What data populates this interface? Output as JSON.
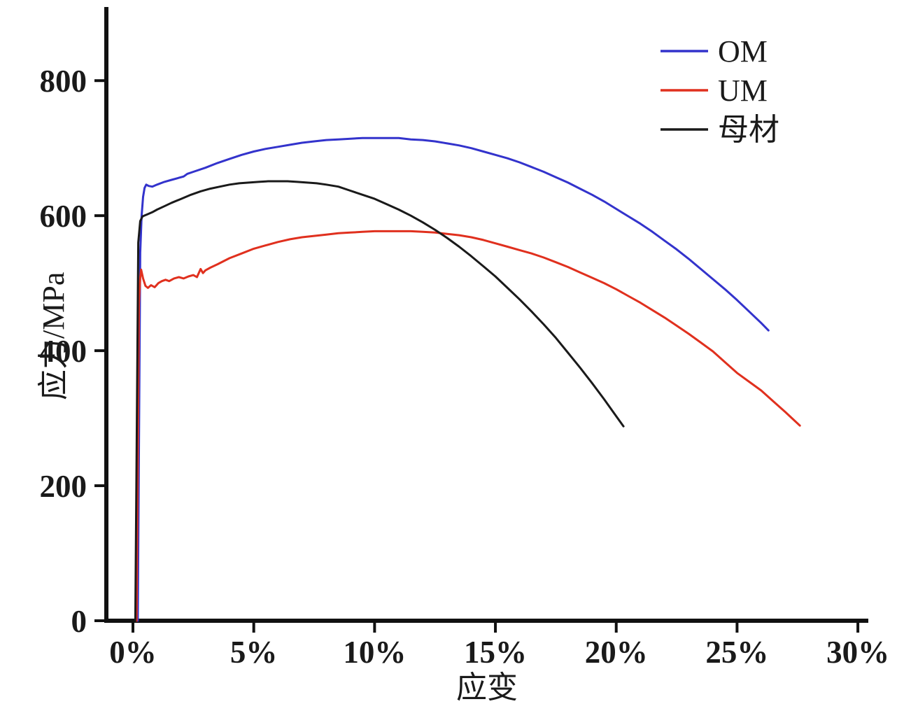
{
  "chart_data": {
    "type": "line",
    "title": "",
    "xlabel": "应变",
    "ylabel": "应力/MPa",
    "x_unit": "percent_strain",
    "y_unit": "MPa",
    "xlim": [
      -1.1,
      30.2
    ],
    "ylim": [
      0,
      907
    ],
    "grid": false,
    "legend_position": "top-right",
    "axis_color": "#111111",
    "x_ticks": [
      {
        "value": 0,
        "label": "0%"
      },
      {
        "value": 5,
        "label": "5%"
      },
      {
        "value": 10,
        "label": "10%"
      },
      {
        "value": 15,
        "label": "15%"
      },
      {
        "value": 20,
        "label": "20%"
      },
      {
        "value": 25,
        "label": "25%"
      },
      {
        "value": 30,
        "label": "30%"
      }
    ],
    "y_ticks": [
      {
        "value": 0,
        "label": "0"
      },
      {
        "value": 200,
        "label": "200"
      },
      {
        "value": 400,
        "label": "400"
      },
      {
        "value": 600,
        "label": "600"
      },
      {
        "value": 800,
        "label": "800"
      }
    ],
    "series": [
      {
        "name": "OM",
        "color": "#3333cc",
        "points": [
          [
            0.2,
            0
          ],
          [
            0.3,
            545
          ],
          [
            0.36,
            600
          ],
          [
            0.42,
            628
          ],
          [
            0.48,
            641
          ],
          [
            0.55,
            646
          ],
          [
            0.65,
            644
          ],
          [
            0.8,
            643
          ],
          [
            1.0,
            646
          ],
          [
            1.3,
            650
          ],
          [
            1.6,
            653
          ],
          [
            1.9,
            656
          ],
          [
            2.1,
            658
          ],
          [
            2.25,
            662
          ],
          [
            2.5,
            665
          ],
          [
            3.0,
            671
          ],
          [
            3.5,
            678
          ],
          [
            4.0,
            684
          ],
          [
            4.5,
            690
          ],
          [
            5.0,
            695
          ],
          [
            5.5,
            699
          ],
          [
            6.0,
            702
          ],
          [
            6.5,
            705
          ],
          [
            7.0,
            708
          ],
          [
            7.5,
            710
          ],
          [
            8.0,
            712
          ],
          [
            8.5,
            713
          ],
          [
            9.0,
            714
          ],
          [
            9.5,
            715
          ],
          [
            10.0,
            715
          ],
          [
            10.5,
            715
          ],
          [
            11.0,
            715
          ],
          [
            11.5,
            713
          ],
          [
            12.0,
            712
          ],
          [
            12.5,
            710
          ],
          [
            13.0,
            707
          ],
          [
            13.5,
            704
          ],
          [
            14.0,
            700
          ],
          [
            14.5,
            695
          ],
          [
            15.0,
            690
          ],
          [
            15.5,
            685
          ],
          [
            16.0,
            679
          ],
          [
            16.5,
            672
          ],
          [
            17.0,
            665
          ],
          [
            17.5,
            657
          ],
          [
            18.0,
            649
          ],
          [
            18.5,
            640
          ],
          [
            19.0,
            631
          ],
          [
            19.5,
            621
          ],
          [
            20.0,
            610
          ],
          [
            20.5,
            599
          ],
          [
            21.0,
            588
          ],
          [
            21.5,
            576
          ],
          [
            22.0,
            563
          ],
          [
            22.5,
            550
          ],
          [
            23.0,
            536
          ],
          [
            23.5,
            521
          ],
          [
            24.0,
            506
          ],
          [
            24.5,
            491
          ],
          [
            25.0,
            475
          ],
          [
            25.5,
            458
          ],
          [
            26.0,
            441
          ],
          [
            26.3,
            430
          ]
        ]
      },
      {
        "name": "UM",
        "color": "#e0301e",
        "points": [
          [
            0.15,
            0
          ],
          [
            0.25,
            470
          ],
          [
            0.3,
            508
          ],
          [
            0.34,
            520
          ],
          [
            0.42,
            507
          ],
          [
            0.52,
            496
          ],
          [
            0.62,
            493
          ],
          [
            0.75,
            497
          ],
          [
            0.9,
            494
          ],
          [
            1.05,
            500
          ],
          [
            1.2,
            503
          ],
          [
            1.35,
            505
          ],
          [
            1.5,
            503
          ],
          [
            1.7,
            507
          ],
          [
            1.9,
            509
          ],
          [
            2.1,
            507
          ],
          [
            2.3,
            510
          ],
          [
            2.5,
            512
          ],
          [
            2.65,
            509
          ],
          [
            2.8,
            521
          ],
          [
            2.9,
            515
          ],
          [
            3.0,
            519
          ],
          [
            3.2,
            523
          ],
          [
            3.5,
            528
          ],
          [
            4.0,
            537
          ],
          [
            4.5,
            544
          ],
          [
            5.0,
            551
          ],
          [
            5.5,
            556
          ],
          [
            6.0,
            561
          ],
          [
            6.5,
            565
          ],
          [
            7.0,
            568
          ],
          [
            7.5,
            570
          ],
          [
            8.0,
            572
          ],
          [
            8.5,
            574
          ],
          [
            9.0,
            575
          ],
          [
            9.5,
            576
          ],
          [
            10.0,
            577
          ],
          [
            10.5,
            577
          ],
          [
            11.0,
            577
          ],
          [
            11.5,
            577
          ],
          [
            12.0,
            576
          ],
          [
            12.5,
            575
          ],
          [
            13.0,
            573
          ],
          [
            13.5,
            571
          ],
          [
            14.0,
            568
          ],
          [
            14.5,
            564
          ],
          [
            15.0,
            559
          ],
          [
            15.5,
            554
          ],
          [
            16.0,
            549
          ],
          [
            16.5,
            544
          ],
          [
            17.0,
            538
          ],
          [
            17.5,
            531
          ],
          [
            18.0,
            524
          ],
          [
            18.5,
            516
          ],
          [
            19.0,
            508
          ],
          [
            19.5,
            500
          ],
          [
            20.0,
            491
          ],
          [
            20.5,
            481
          ],
          [
            21.0,
            471
          ],
          [
            21.5,
            460
          ],
          [
            22.0,
            449
          ],
          [
            22.5,
            437
          ],
          [
            23.0,
            425
          ],
          [
            23.5,
            412
          ],
          [
            24.0,
            399
          ],
          [
            24.5,
            383
          ],
          [
            25.0,
            367
          ],
          [
            25.5,
            354
          ],
          [
            26.0,
            341
          ],
          [
            26.5,
            325
          ],
          [
            27.0,
            309
          ],
          [
            27.3,
            299
          ],
          [
            27.6,
            289
          ]
        ]
      },
      {
        "name": "母材",
        "color": "#1a1a1a",
        "points": [
          [
            0.1,
            0
          ],
          [
            0.22,
            560
          ],
          [
            0.3,
            592
          ],
          [
            0.4,
            599
          ],
          [
            0.6,
            602
          ],
          [
            0.8,
            605
          ],
          [
            1.0,
            609
          ],
          [
            1.3,
            614
          ],
          [
            1.6,
            619
          ],
          [
            2.0,
            625
          ],
          [
            2.4,
            631
          ],
          [
            2.8,
            636
          ],
          [
            3.2,
            640
          ],
          [
            3.6,
            643
          ],
          [
            4.0,
            646
          ],
          [
            4.4,
            648
          ],
          [
            4.8,
            649
          ],
          [
            5.2,
            650
          ],
          [
            5.6,
            651
          ],
          [
            6.0,
            651
          ],
          [
            6.4,
            651
          ],
          [
            6.8,
            650
          ],
          [
            7.2,
            649
          ],
          [
            7.6,
            648
          ],
          [
            8.0,
            646
          ],
          [
            8.5,
            643
          ],
          [
            9.0,
            637
          ],
          [
            9.5,
            631
          ],
          [
            10.0,
            625
          ],
          [
            10.5,
            617
          ],
          [
            11.0,
            609
          ],
          [
            11.5,
            600
          ],
          [
            12.0,
            590
          ],
          [
            12.5,
            579
          ],
          [
            13.0,
            567
          ],
          [
            13.5,
            554
          ],
          [
            14.0,
            540
          ],
          [
            14.5,
            525
          ],
          [
            15.0,
            510
          ],
          [
            15.5,
            493
          ],
          [
            16.0,
            476
          ],
          [
            16.5,
            458
          ],
          [
            17.0,
            439
          ],
          [
            17.5,
            419
          ],
          [
            18.0,
            397
          ],
          [
            18.5,
            375
          ],
          [
            19.0,
            352
          ],
          [
            19.5,
            328
          ],
          [
            20.0,
            303
          ],
          [
            20.3,
            288
          ]
        ]
      }
    ]
  }
}
